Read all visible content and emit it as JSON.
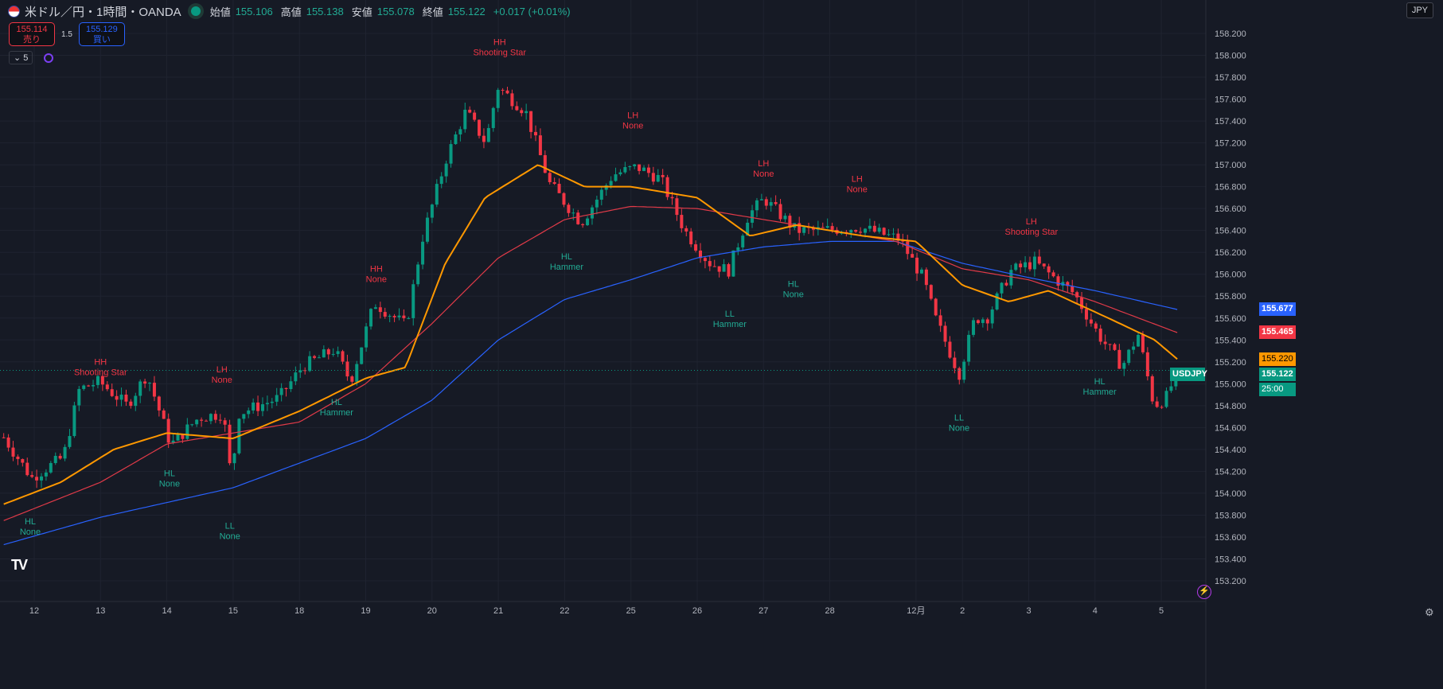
{
  "header": {
    "title": "米ドル／円・1時間・OANDA",
    "open_label": "始値",
    "open": "155.106",
    "high_label": "高値",
    "high": "155.138",
    "low_label": "安値",
    "low": "155.078",
    "close_label": "終値",
    "close": "155.122",
    "change": "+0.017 (+0.01%)"
  },
  "trade": {
    "sell_price": "155.114",
    "sell_label": "売り",
    "spread": "1.5",
    "buy_price": "155.129",
    "buy_label": "買い"
  },
  "controls": {
    "collapse": "⌄ 5"
  },
  "currency": "JPY",
  "logo": "TV",
  "colors": {
    "up": "#089981",
    "down": "#f23645",
    "ma_fast": "#ff9800",
    "ma_mid": "#e03a48",
    "ma_slow": "#2962ff"
  },
  "chart_data": {
    "type": "candlestick",
    "symbol": "USDJPY",
    "ylim": [
      153.2,
      158.2
    ],
    "yticks": [
      "158.200",
      "158.000",
      "157.800",
      "157.600",
      "157.400",
      "157.200",
      "157.000",
      "156.800",
      "156.600",
      "156.400",
      "156.200",
      "156.000",
      "155.800",
      "155.600",
      "155.400",
      "155.200",
      "155.000",
      "154.800",
      "154.600",
      "154.400",
      "154.200",
      "154.000",
      "153.800",
      "153.600",
      "153.400",
      "153.200"
    ],
    "xticks": [
      {
        "t": 0,
        "label": "12"
      },
      {
        "t": 1,
        "label": "13"
      },
      {
        "t": 2,
        "label": "14"
      },
      {
        "t": 3,
        "label": "15"
      },
      {
        "t": 4,
        "label": "18"
      },
      {
        "t": 5,
        "label": "19"
      },
      {
        "t": 6,
        "label": "20"
      },
      {
        "t": 7,
        "label": "21"
      },
      {
        "t": 8,
        "label": "22"
      },
      {
        "t": 9,
        "label": "25"
      },
      {
        "t": 10,
        "label": "26"
      },
      {
        "t": 11,
        "label": "27"
      },
      {
        "t": 12,
        "label": "28"
      },
      {
        "t": 13.3,
        "label": "12月"
      },
      {
        "t": 14,
        "label": "2"
      },
      {
        "t": 15,
        "label": "3"
      },
      {
        "t": 16,
        "label": "4"
      },
      {
        "t": 17,
        "label": "5"
      }
    ],
    "price_path": [
      [
        -0.46,
        154.51
      ],
      [
        -0.04,
        154.14
      ],
      [
        0.44,
        154.33
      ],
      [
        0.68,
        154.95
      ],
      [
        0.98,
        155.02
      ],
      [
        1.4,
        154.8
      ],
      [
        1.7,
        155.09
      ],
      [
        2.06,
        154.44
      ],
      [
        2.48,
        154.69
      ],
      [
        2.85,
        154.73
      ],
      [
        2.97,
        154.14
      ],
      [
        3.09,
        154.73
      ],
      [
        3.69,
        154.87
      ],
      [
        4.05,
        155.16
      ],
      [
        4.53,
        155.31
      ],
      [
        4.77,
        155.02
      ],
      [
        5.13,
        155.74
      ],
      [
        5.61,
        155.53
      ],
      [
        5.85,
        156.32
      ],
      [
        6.21,
        157.05
      ],
      [
        6.51,
        157.49
      ],
      [
        6.81,
        157.2
      ],
      [
        6.99,
        157.71
      ],
      [
        7.41,
        157.49
      ],
      [
        7.77,
        156.83
      ],
      [
        8.25,
        156.47
      ],
      [
        8.73,
        156.91
      ],
      [
        9.09,
        156.98
      ],
      [
        9.45,
        156.87
      ],
      [
        9.81,
        156.4
      ],
      [
        10.17,
        156.11
      ],
      [
        10.47,
        156.03
      ],
      [
        10.77,
        156.54
      ],
      [
        11.01,
        156.69
      ],
      [
        11.49,
        156.4
      ],
      [
        11.85,
        156.4
      ],
      [
        12.45,
        156.43
      ],
      [
        13.05,
        156.32
      ],
      [
        13.41,
        155.96
      ],
      [
        13.59,
        155.6
      ],
      [
        13.95,
        155.09
      ],
      [
        14.19,
        155.6
      ],
      [
        14.37,
        155.6
      ],
      [
        14.73,
        156.03
      ],
      [
        15.09,
        156.11
      ],
      [
        15.69,
        155.82
      ],
      [
        16.05,
        155.45
      ],
      [
        16.41,
        155.16
      ],
      [
        16.65,
        155.45
      ],
      [
        16.89,
        154.8
      ],
      [
        17.07,
        154.87
      ],
      [
        17.25,
        155.122
      ]
    ],
    "ma_fast": [
      [
        -0.46,
        153.9
      ],
      [
        0.4,
        154.1
      ],
      [
        1.2,
        154.4
      ],
      [
        2,
        154.55
      ],
      [
        3,
        154.5
      ],
      [
        4,
        154.75
      ],
      [
        5,
        155.05
      ],
      [
        5.6,
        155.15
      ],
      [
        6.2,
        156.1
      ],
      [
        6.8,
        156.7
      ],
      [
        7.6,
        157.0
      ],
      [
        8.3,
        156.8
      ],
      [
        9,
        156.8
      ],
      [
        10,
        156.7
      ],
      [
        10.8,
        156.35
      ],
      [
        11.5,
        156.45
      ],
      [
        12.5,
        156.35
      ],
      [
        13.3,
        156.3
      ],
      [
        14,
        155.9
      ],
      [
        14.7,
        155.75
      ],
      [
        15.3,
        155.85
      ],
      [
        16.2,
        155.6
      ],
      [
        16.9,
        155.4
      ],
      [
        17.25,
        155.22
      ]
    ],
    "ma_mid": [
      [
        -0.46,
        153.75
      ],
      [
        1,
        154.1
      ],
      [
        2,
        154.45
      ],
      [
        3,
        154.55
      ],
      [
        4,
        154.65
      ],
      [
        5,
        155.0
      ],
      [
        6,
        155.55
      ],
      [
        7,
        156.15
      ],
      [
        8,
        156.5
      ],
      [
        9,
        156.62
      ],
      [
        10,
        156.6
      ],
      [
        11,
        156.5
      ],
      [
        12,
        156.4
      ],
      [
        13,
        156.3
      ],
      [
        14,
        156.05
      ],
      [
        15,
        155.95
      ],
      [
        16,
        155.75
      ],
      [
        17.25,
        155.465
      ]
    ],
    "ma_slow": [
      [
        -0.46,
        153.53
      ],
      [
        1,
        153.78
      ],
      [
        3,
        154.05
      ],
      [
        5,
        154.5
      ],
      [
        6,
        154.85
      ],
      [
        7,
        155.4
      ],
      [
        8,
        155.77
      ],
      [
        9,
        155.95
      ],
      [
        10,
        156.15
      ],
      [
        11,
        156.25
      ],
      [
        12,
        156.3
      ],
      [
        13,
        156.3
      ],
      [
        14,
        156.1
      ],
      [
        15,
        155.97
      ],
      [
        16,
        155.85
      ],
      [
        17.25,
        155.677
      ]
    ],
    "last_values": {
      "ma_slow": "155.677",
      "ma_mid": "155.465",
      "ma_fast": "155.220",
      "price": "155.122",
      "countdown": "25:00"
    },
    "annotations": [
      {
        "t": -0.06,
        "p": 153.7,
        "l1": "HL",
        "l2": "None",
        "kind": "low"
      },
      {
        "t": 1.0,
        "p": 155.16,
        "l1": "HH",
        "l2": "Shooting Star",
        "kind": "high"
      },
      {
        "t": 2.04,
        "p": 154.14,
        "l1": "HL",
        "l2": "None",
        "kind": "low"
      },
      {
        "t": 2.83,
        "p": 155.09,
        "l1": "LH",
        "l2": "None",
        "kind": "high"
      },
      {
        "t": 2.95,
        "p": 153.66,
        "l1": "LL",
        "l2": "None",
        "kind": "low"
      },
      {
        "t": 4.56,
        "p": 154.79,
        "l1": "HL",
        "l2": "Hammer",
        "kind": "low"
      },
      {
        "t": 5.16,
        "p": 156.01,
        "l1": "HH",
        "l2": "None",
        "kind": "high"
      },
      {
        "t": 7.02,
        "p": 158.08,
        "l1": "HH",
        "l2": "Shooting Star",
        "kind": "high"
      },
      {
        "t": 8.03,
        "p": 156.12,
        "l1": "HL",
        "l2": "Hammer",
        "kind": "low"
      },
      {
        "t": 9.03,
        "p": 157.41,
        "l1": "LH",
        "l2": "None",
        "kind": "high"
      },
      {
        "t": 10.49,
        "p": 155.6,
        "l1": "LL",
        "l2": "Hammer",
        "kind": "low"
      },
      {
        "t": 11.0,
        "p": 156.97,
        "l1": "LH",
        "l2": "None",
        "kind": "high"
      },
      {
        "t": 11.45,
        "p": 155.87,
        "l1": "HL",
        "l2": "None",
        "kind": "low"
      },
      {
        "t": 12.41,
        "p": 156.83,
        "l1": "LH",
        "l2": "None",
        "kind": "high"
      },
      {
        "t": 13.95,
        "p": 154.65,
        "l1": "LL",
        "l2": "None",
        "kind": "low"
      },
      {
        "t": 15.04,
        "p": 156.44,
        "l1": "LH",
        "l2": "Shooting Star",
        "kind": "high"
      },
      {
        "t": 16.07,
        "p": 154.98,
        "l1": "HL",
        "l2": "Hammer",
        "kind": "low"
      }
    ]
  }
}
